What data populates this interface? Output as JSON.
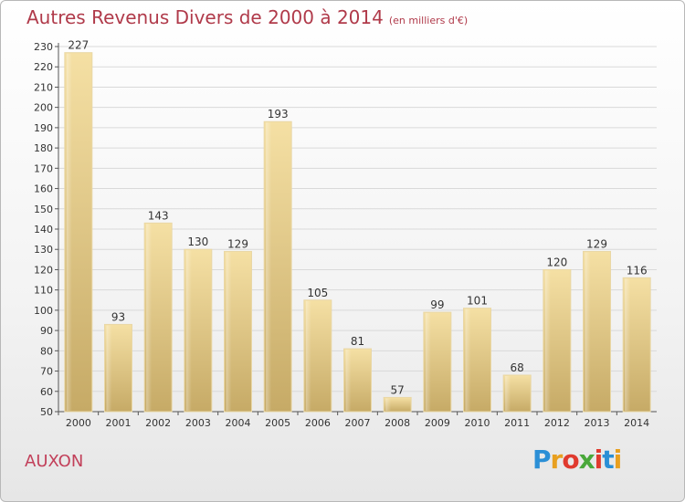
{
  "title": "Autres Revenus Divers de 2000 à 2014",
  "subtitle": "(en milliers d'€)",
  "location": "AUXON",
  "logo": {
    "letters": [
      "P",
      "r",
      "o",
      "x",
      "i",
      "t",
      "i"
    ],
    "colors": [
      "#2b8fd6",
      "#e8a020",
      "#e03a2e",
      "#49a83a",
      "#e03a2e",
      "#2b8fd6",
      "#e8a020"
    ]
  },
  "chart_data": {
    "type": "bar",
    "categories": [
      "2000",
      "2001",
      "2002",
      "2003",
      "2004",
      "2005",
      "2006",
      "2007",
      "2008",
      "2009",
      "2010",
      "2011",
      "2012",
      "2013",
      "2014"
    ],
    "values": [
      227,
      93,
      143,
      130,
      129,
      193,
      105,
      81,
      57,
      99,
      101,
      68,
      120,
      129,
      116
    ],
    "title": "Autres Revenus Divers de 2000 à 2014",
    "ylim": [
      50,
      230
    ],
    "yticks": [
      50,
      60,
      70,
      80,
      90,
      100,
      110,
      120,
      130,
      140,
      150,
      160,
      170,
      180,
      190,
      200,
      210,
      220,
      230
    ],
    "grid": true,
    "colors": {
      "bar_light": "#f3dc9c",
      "bar_dark": "#c8ad68",
      "grid": "#d9d9d9"
    }
  }
}
